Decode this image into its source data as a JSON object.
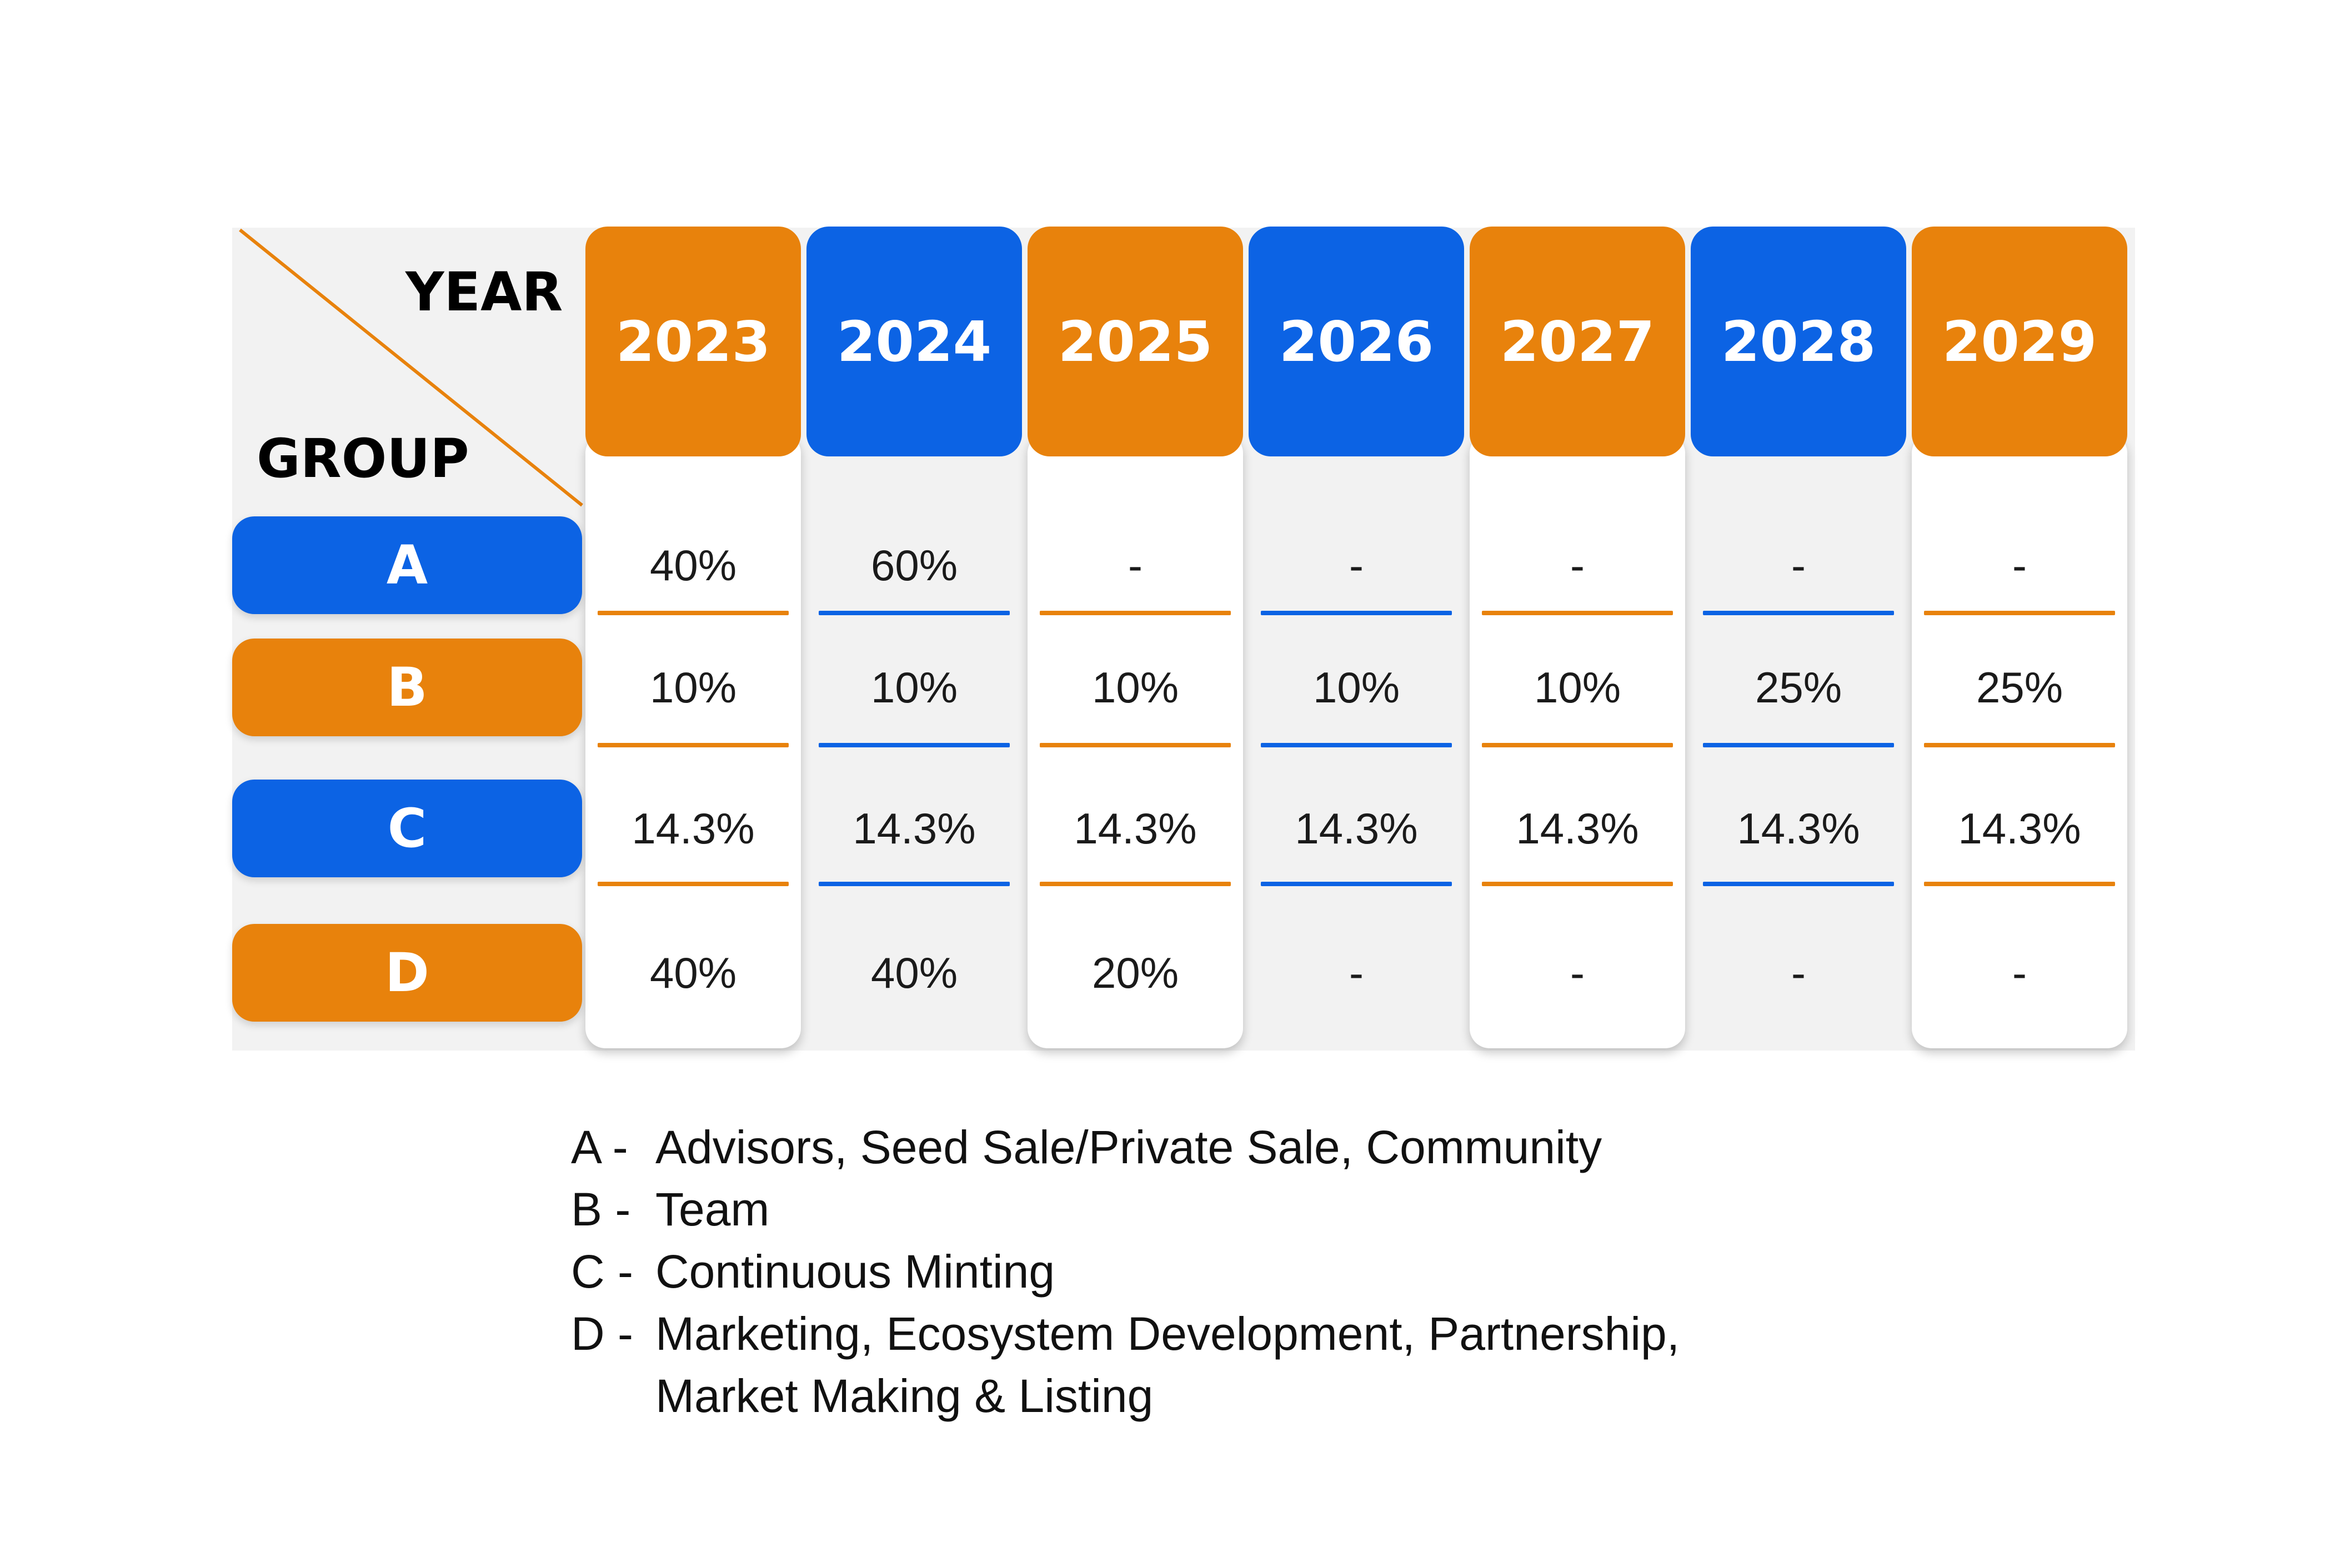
{
  "chart_data": {
    "type": "table",
    "corner": {
      "column_axis_label": "YEAR",
      "row_axis_label": "GROUP"
    },
    "years": [
      "2023",
      "2024",
      "2025",
      "2026",
      "2027",
      "2028",
      "2029"
    ],
    "groups": [
      "A",
      "B",
      "C",
      "D"
    ],
    "rows": [
      [
        "40%",
        "60%",
        "-",
        "-",
        "-",
        "-",
        "-"
      ],
      [
        "10%",
        "10%",
        "10%",
        "10%",
        "10%",
        "25%",
        "25%"
      ],
      [
        "14.3%",
        "14.3%",
        "14.3%",
        "14.3%",
        "14.3%",
        "14.3%",
        "14.3%"
      ],
      [
        "40%",
        "40%",
        "20%",
        "-",
        "-",
        "-",
        "-"
      ]
    ],
    "values_percent": [
      [
        40,
        60,
        0,
        0,
        0,
        0,
        0
      ],
      [
        10,
        10,
        10,
        10,
        10,
        25,
        25
      ],
      [
        14.3,
        14.3,
        14.3,
        14.3,
        14.3,
        14.3,
        14.3
      ],
      [
        40,
        40,
        20,
        0,
        0,
        0,
        0
      ]
    ],
    "colors": {
      "orange": "#e8820c",
      "blue": "#0c63e4"
    },
    "year_colors": [
      "orange",
      "blue",
      "orange",
      "blue",
      "orange",
      "blue",
      "orange"
    ],
    "group_colors": [
      "blue",
      "orange",
      "blue",
      "orange"
    ]
  },
  "legend": [
    {
      "letter": "A -",
      "lines": [
        "Advisors, Seed Sale/Private Sale, Community"
      ]
    },
    {
      "letter": "B -",
      "lines": [
        "Team"
      ]
    },
    {
      "letter": "C -",
      "lines": [
        "Continuous Minting"
      ]
    },
    {
      "letter": "D -",
      "lines": [
        "Marketing, Ecosystem Development, Partnership,",
        "Market Making & Listing"
      ]
    }
  ]
}
